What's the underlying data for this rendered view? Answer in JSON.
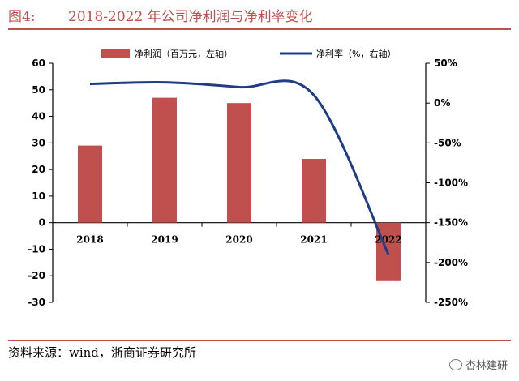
{
  "figure": {
    "number_label": "图4:",
    "title_text": "2018-2022 年公司净利润与净利率变化",
    "source": "资料来源：wind，浙商证券研究所",
    "watermark": "杏林建研"
  },
  "colors": {
    "title": "#c0504d",
    "bars": "#c0504d",
    "line": "#1f3c88",
    "axis": "#000000"
  },
  "chart_data": {
    "type": "bar",
    "categories": [
      "2018",
      "2019",
      "2020",
      "2021",
      "2022"
    ],
    "series": [
      {
        "name": "净利润（百万元，左轴）",
        "type": "bar",
        "axis": "left",
        "values": [
          29,
          47,
          45,
          24,
          -22
        ]
      },
      {
        "name": "净利率（%，右轴）",
        "type": "line",
        "axis": "right",
        "values": [
          24,
          26,
          20,
          10,
          -190
        ]
      }
    ],
    "y_left": {
      "ylim": [
        -30,
        60
      ],
      "ticks": [
        "60",
        "50",
        "40",
        "30",
        "20",
        "10",
        "0",
        "-10",
        "-20",
        "-30"
      ]
    },
    "y_right": {
      "ylim": [
        -250,
        50
      ],
      "ticks": [
        "50%",
        "0%",
        "-50%",
        "-100%",
        "-150%",
        "-200%",
        "-250%"
      ]
    },
    "legend_position": "top",
    "grid": false
  }
}
